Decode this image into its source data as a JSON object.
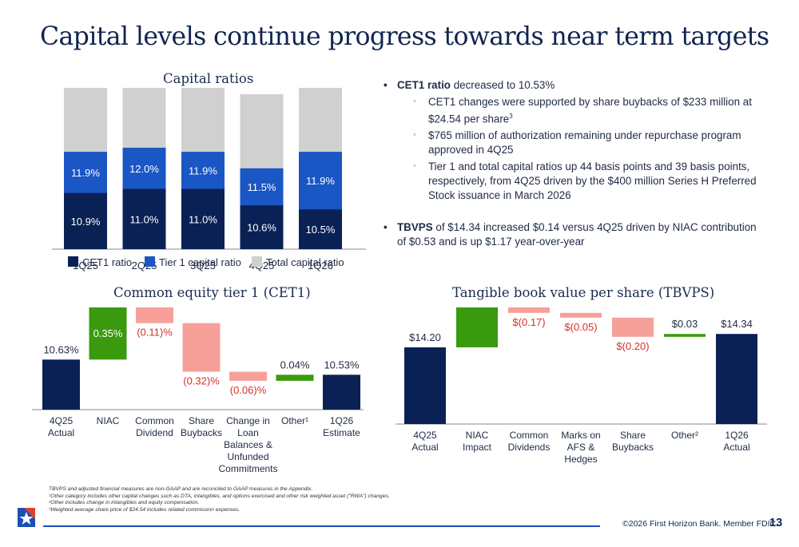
{
  "page": {
    "title": "Capital levels continue progress towards near term targets",
    "page_number": "13",
    "copyright": "©2026 First Horizon Bank. Member FDIC.",
    "logo_icon": "first-horizon-star-logo"
  },
  "bullets": [
    {
      "bold": "CET1 ratio",
      "text": " decreased to 10.53%",
      "sub": [
        {
          "text": "CET1 changes were supported by share buybacks of $233 million at $24.54 per share",
          "sup": "3"
        },
        {
          "text": "$765 million of authorization remaining under repurchase program approved in 4Q25",
          "sup": ""
        },
        {
          "text": "Tier 1 and total capital ratios up 44 basis points and 39 basis points, respectively, from 4Q25 driven by the $400 million Series H Preferred Stock issuance in March 2026",
          "sup": ""
        }
      ]
    },
    {
      "bold": "TBVPS",
      "text": " of $14.34 increased $0.14 versus 4Q25 driven by NIAC contribution of $0.53 and is up $1.17 year-over-year",
      "sub": []
    }
  ],
  "footnotes": [
    "TBVPS and adjusted financial measures are non-GAAP and are reconciled to GAAP measures in the Appendix.",
    "¹Other category includes other capital changes such as DTA, intangibles, and options exercised and other risk weighted asset (\"RWA\") changes.",
    "²Other includes change in intangibles and equity compensation.",
    "³Weighted average share price of $24.54 includes related commission expenses."
  ],
  "colors": {
    "navy": "#0a2155",
    "blue": "#1a56c4",
    "gray": "#d0d0d0",
    "green": "#3a9a0e",
    "salmon": "#f7a09a",
    "neg_text": "#d8312a"
  },
  "chart_data": [
    {
      "type": "bar",
      "subtype": "overlapping-stacked",
      "title": "Capital ratios",
      "categories": [
        "1Q25",
        "2Q25",
        "3Q25",
        "4Q25",
        "1Q26"
      ],
      "series": [
        {
          "name": "CET1 ratio",
          "values": [
            10.9,
            11.0,
            11.0,
            10.6,
            10.5
          ],
          "labels": [
            "10.9%",
            "11.0%",
            "11.0%",
            "10.6%",
            "10.5%"
          ]
        },
        {
          "name": "Tier 1 capital ratio",
          "values": [
            11.9,
            12.0,
            11.9,
            11.5,
            11.9
          ],
          "labels": [
            "11.9%",
            "12.0%",
            "11.9%",
            "11.5%",
            "11.9%"
          ]
        },
        {
          "name": "Total capital ratio",
          "values": [
            14.1,
            14.0,
            13.8,
            13.3,
            13.7
          ],
          "labels": [
            "14.1%",
            "14.0%",
            "13.8%",
            "13.3%",
            "13.7%"
          ]
        }
      ],
      "legend": "bottom",
      "grid": false,
      "ylim": [
        0,
        15
      ]
    },
    {
      "type": "bar",
      "subtype": "waterfall",
      "title": "Common equity tier 1 (CET1)",
      "categories": [
        "4Q25 Actual",
        "NIAC",
        "Common Dividend",
        "Share Buybacks",
        "Change in Loan Balances & Unfunded Commitments",
        "Other¹",
        "1Q26 Estimate"
      ],
      "category_lines": [
        [
          "4Q25",
          "Actual"
        ],
        [
          "NIAC"
        ],
        [
          "Common",
          "Dividend"
        ],
        [
          "Share",
          "Buybacks"
        ],
        [
          "Change in",
          "Loan",
          "Balances &",
          "Unfunded",
          "Commitments"
        ],
        [
          "Other¹"
        ],
        [
          "1Q26",
          "Estimate"
        ]
      ],
      "values": [
        10.63,
        0.35,
        -0.11,
        -0.32,
        -0.06,
        0.04,
        10.53
      ],
      "kinds": [
        "total",
        "delta",
        "delta",
        "delta",
        "delta",
        "delta",
        "total"
      ],
      "labels": [
        "10.63%",
        "0.35%",
        "(0.11)%",
        "(0.32)%",
        "(0.06)%",
        "0.04%",
        "10.53%"
      ],
      "grid": false
    },
    {
      "type": "bar",
      "subtype": "waterfall",
      "title": "Tangible book value per share (TBVPS)",
      "categories": [
        "4Q25 Actual",
        "NIAC Impact",
        "Common Dividends",
        "Marks on AFS & Hedges",
        "Share Buybacks",
        "Other²",
        "1Q26 Actual"
      ],
      "category_lines": [
        [
          "4Q25",
          "Actual"
        ],
        [
          "NIAC",
          "Impact"
        ],
        [
          "Common",
          "Dividends"
        ],
        [
          "Marks on",
          "AFS &",
          "Hedges"
        ],
        [
          "Share",
          "Buybacks"
        ],
        [
          "Other²"
        ],
        [
          "1Q26",
          "Actual"
        ]
      ],
      "values": [
        14.2,
        0.53,
        -0.17,
        -0.05,
        -0.2,
        0.03,
        14.34
      ],
      "kinds": [
        "total",
        "delta",
        "delta",
        "delta",
        "delta",
        "delta",
        "total"
      ],
      "labels": [
        "$14.20",
        "$0.53",
        "$(0.17)",
        "$(0.05)",
        "$(0.20)",
        "$0.03",
        "$14.34"
      ],
      "grid": false
    }
  ]
}
